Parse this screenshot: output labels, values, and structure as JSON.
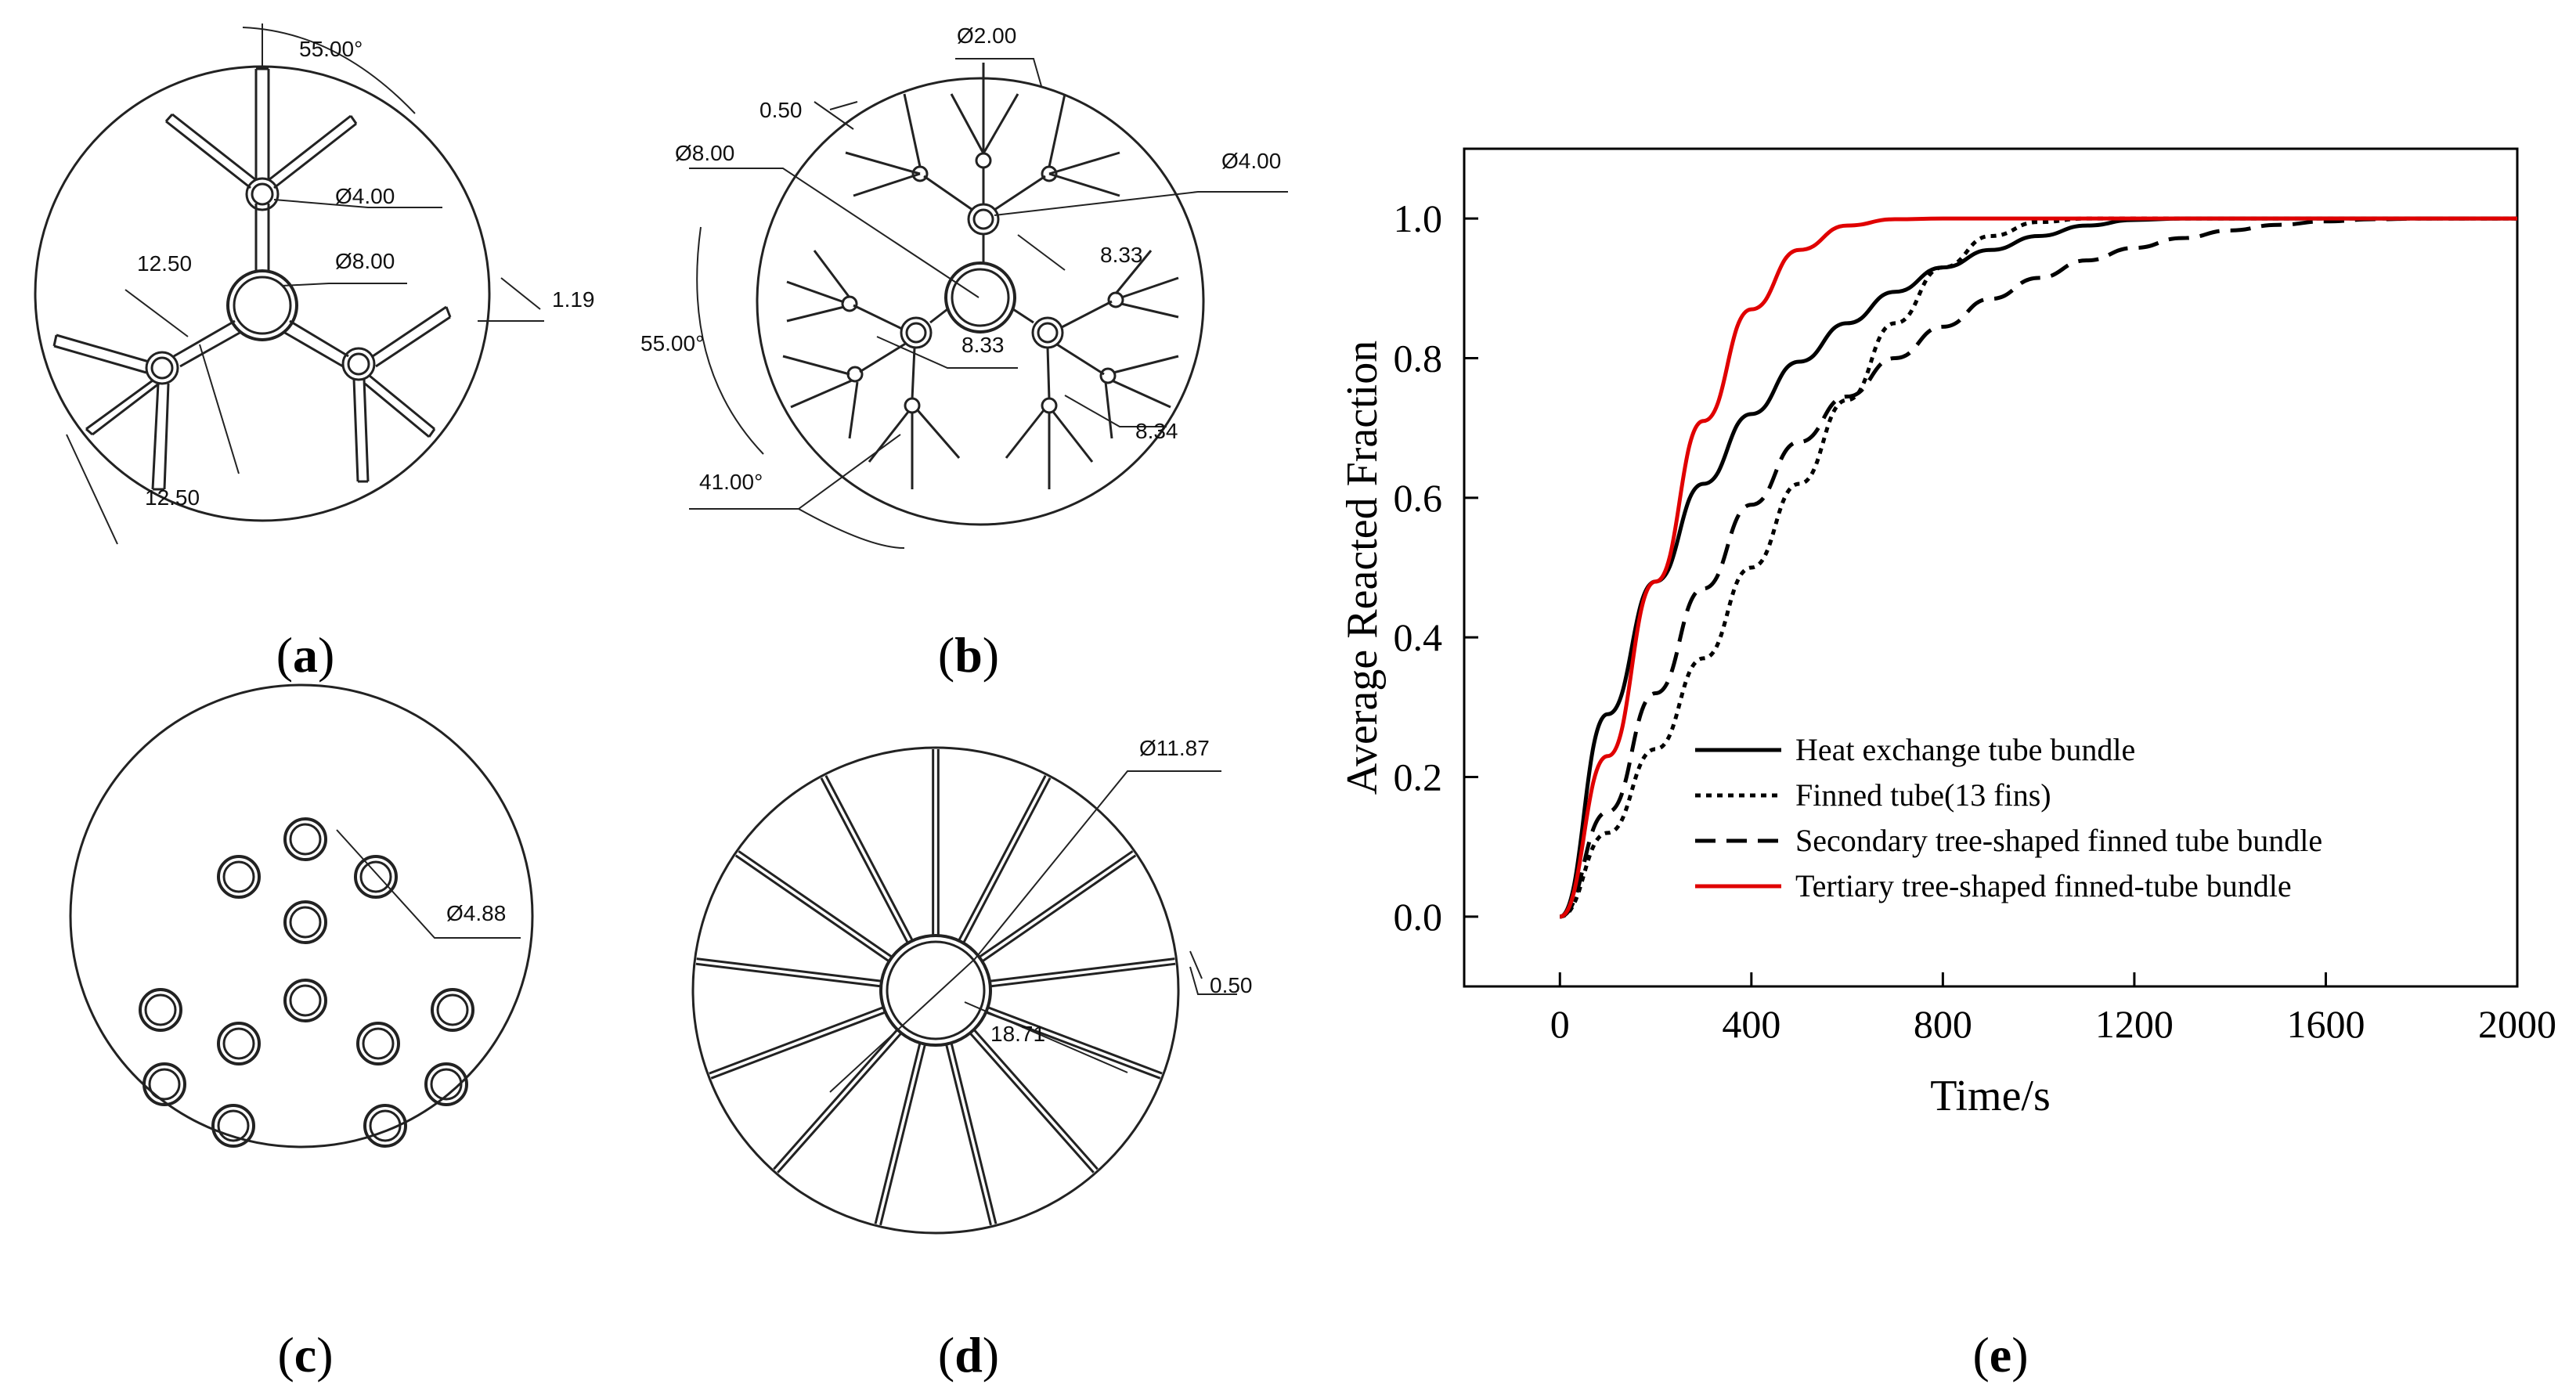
{
  "panels": {
    "a": {
      "label_open": "(",
      "label_letter": "a",
      "label_close": ")",
      "dims": [
        "55.00°",
        "Ø4.00",
        "12.50",
        "Ø8.00",
        "1.19",
        "12.50"
      ]
    },
    "b": {
      "label_open": "(",
      "label_letter": "b",
      "label_close": ")",
      "dims": [
        "Ø2.00",
        "0.50",
        "Ø4.00",
        "Ø8.00",
        "8.33",
        "55.00°",
        "8.33",
        "8.34",
        "41.00°"
      ]
    },
    "c": {
      "label_open": "(",
      "label_letter": "c",
      "label_close": ")",
      "dims": [
        "Ø4.88"
      ]
    },
    "d": {
      "label_open": "(",
      "label_letter": "d",
      "label_close": ")",
      "dims": [
        "Ø11.87",
        "0.50",
        "18.71"
      ]
    },
    "e": {
      "label_open": "(",
      "label_letter": "e",
      "label_close": ")"
    }
  },
  "chart_data": {
    "type": "line",
    "title": "",
    "xlabel": "Time/s",
    "ylabel": "Average Reacted Fraction",
    "xlim": [
      -200,
      2000
    ],
    "ylim": [
      -0.1,
      1.1
    ],
    "xticks": [
      "0",
      "400",
      "800",
      "1200",
      "1600",
      "2000"
    ],
    "yticks": [
      "0.0",
      "0.2",
      "0.4",
      "0.6",
      "0.8",
      "1.0"
    ],
    "legend_position": "lower-right",
    "x": [
      0,
      100,
      200,
      300,
      400,
      500,
      600,
      700,
      800,
      900,
      1000,
      1100,
      1200,
      1300,
      1400,
      1500,
      1600,
      1700,
      1800,
      1900,
      2000
    ],
    "series": [
      {
        "name": "Heat exchange tube bundle",
        "color": "#000000",
        "dash": "solid",
        "values": [
          0.0,
          0.29,
          0.48,
          0.62,
          0.72,
          0.795,
          0.85,
          0.895,
          0.93,
          0.955,
          0.975,
          0.99,
          0.998,
          1.0,
          1.0,
          1.0,
          1.0,
          1.0,
          1.0,
          1.0,
          1.0
        ]
      },
      {
        "name": "Finned tube(13 fins)",
        "color": "#000000",
        "dash": "dotted",
        "values": [
          0.0,
          0.12,
          0.24,
          0.37,
          0.5,
          0.62,
          0.74,
          0.85,
          0.93,
          0.975,
          0.995,
          1.0,
          1.0,
          1.0,
          1.0,
          1.0,
          1.0,
          1.0,
          1.0,
          1.0,
          1.0
        ]
      },
      {
        "name": "Secondary tree-shaped finned tube bundle",
        "color": "#000000",
        "dash": "dashed",
        "values": [
          0.0,
          0.15,
          0.32,
          0.47,
          0.59,
          0.68,
          0.745,
          0.8,
          0.845,
          0.885,
          0.915,
          0.94,
          0.958,
          0.972,
          0.983,
          0.991,
          0.996,
          0.999,
          1.0,
          1.0,
          1.0
        ]
      },
      {
        "name": "Tertiary tree-shaped finned-tube bundle",
        "color": "#e00000",
        "dash": "solid",
        "values": [
          0.0,
          0.23,
          0.48,
          0.71,
          0.87,
          0.955,
          0.99,
          0.999,
          1.0,
          1.0,
          1.0,
          1.0,
          1.0,
          1.0,
          1.0,
          1.0,
          1.0,
          1.0,
          1.0,
          1.0,
          1.0
        ]
      }
    ]
  }
}
